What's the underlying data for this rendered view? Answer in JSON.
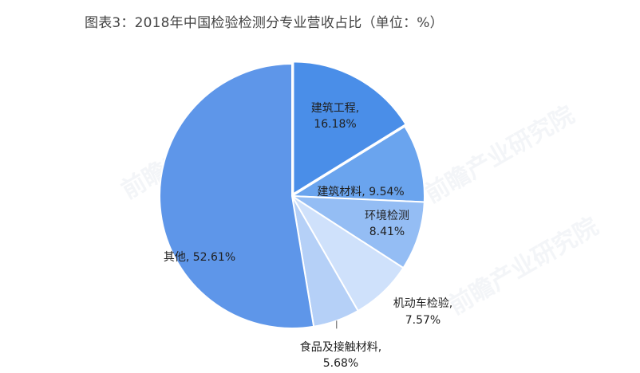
{
  "chart_data": {
    "type": "pie",
    "title": "图表3：2018年中国检验检测分专业营收占比（单位：%）",
    "unit": "%",
    "slices": [
      {
        "label": "建筑工程",
        "value": 16.18,
        "color": "#4a8ee8",
        "label_text": [
          "建筑工程,",
          "16.18%"
        ]
      },
      {
        "label": "建筑材料",
        "value": 9.54,
        "color": "#6aa4ee",
        "label_text": [
          "建筑材料, 9.54%"
        ]
      },
      {
        "label": "环境检测",
        "value": 8.41,
        "color": "#94bdf4",
        "label_text": [
          "环境检测",
          "8.41%"
        ]
      },
      {
        "label": "机动车检验",
        "value": 7.57,
        "color": "#cfe1fb",
        "label_text": [
          "机动车检验,",
          "7.57%"
        ]
      },
      {
        "label": "食品及接触材料",
        "value": 5.68,
        "color": "#b5d0f7",
        "label_text": [
          "食品及接触材料,",
          "5.68%"
        ]
      },
      {
        "label": "其他",
        "value": 52.61,
        "color": "#5e96e9",
        "label_text": [
          "其他, 52.61%"
        ]
      }
    ],
    "legend": "none"
  },
  "watermark": {
    "text": "前瞻产业研究院"
  }
}
